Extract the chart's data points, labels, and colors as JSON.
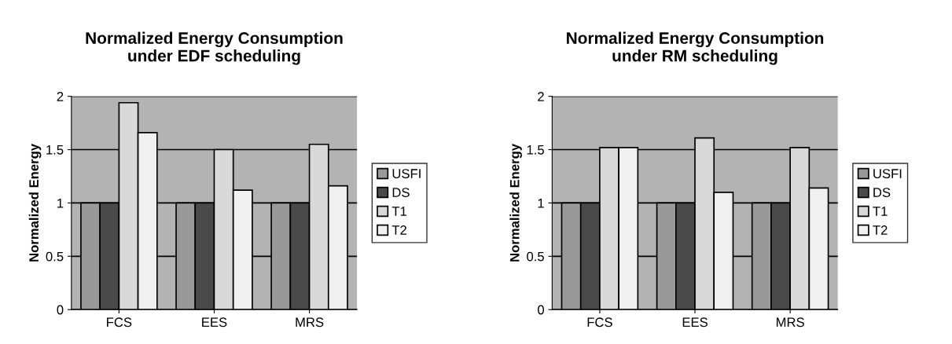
{
  "chart_data": [
    {
      "type": "bar",
      "title": "Normalized Energy Consumption\nunder EDF scheduling",
      "ylabel": "Normalized Energy",
      "categories": [
        "FCS",
        "EES",
        "MRS"
      ],
      "series": [
        {
          "name": "USFI",
          "color": "#999999",
          "values": [
            1,
            1,
            1
          ]
        },
        {
          "name": "DS",
          "color": "#4a4a4a",
          "values": [
            1,
            1,
            1
          ]
        },
        {
          "name": "T1",
          "color": "#d9d9d9",
          "values": [
            1.94,
            1.5,
            1.55
          ]
        },
        {
          "name": "T2",
          "color": "#f0f0f0",
          "values": [
            1.66,
            1.12,
            1.16
          ]
        }
      ],
      "ylim": [
        0,
        2
      ],
      "yticks": [
        0,
        0.5,
        1,
        1.5,
        2
      ],
      "grid": "y",
      "legend": "right"
    },
    {
      "type": "bar",
      "title": "Normalized Energy Consumption\nunder RM scheduling",
      "ylabel": "Normalized Energy",
      "categories": [
        "FCS",
        "EES",
        "MRS"
      ],
      "series": [
        {
          "name": "USFI",
          "color": "#999999",
          "values": [
            1,
            1,
            1
          ]
        },
        {
          "name": "DS",
          "color": "#4a4a4a",
          "values": [
            1,
            1,
            1
          ]
        },
        {
          "name": "T1",
          "color": "#d9d9d9",
          "values": [
            1.52,
            1.61,
            1.52
          ]
        },
        {
          "name": "T2",
          "color": "#f0f0f0",
          "values": [
            1.52,
            1.1,
            1.14
          ]
        }
      ],
      "ylim": [
        0,
        2
      ],
      "yticks": [
        0,
        0.5,
        1,
        1.5,
        2
      ],
      "grid": "y",
      "legend": "right"
    }
  ]
}
